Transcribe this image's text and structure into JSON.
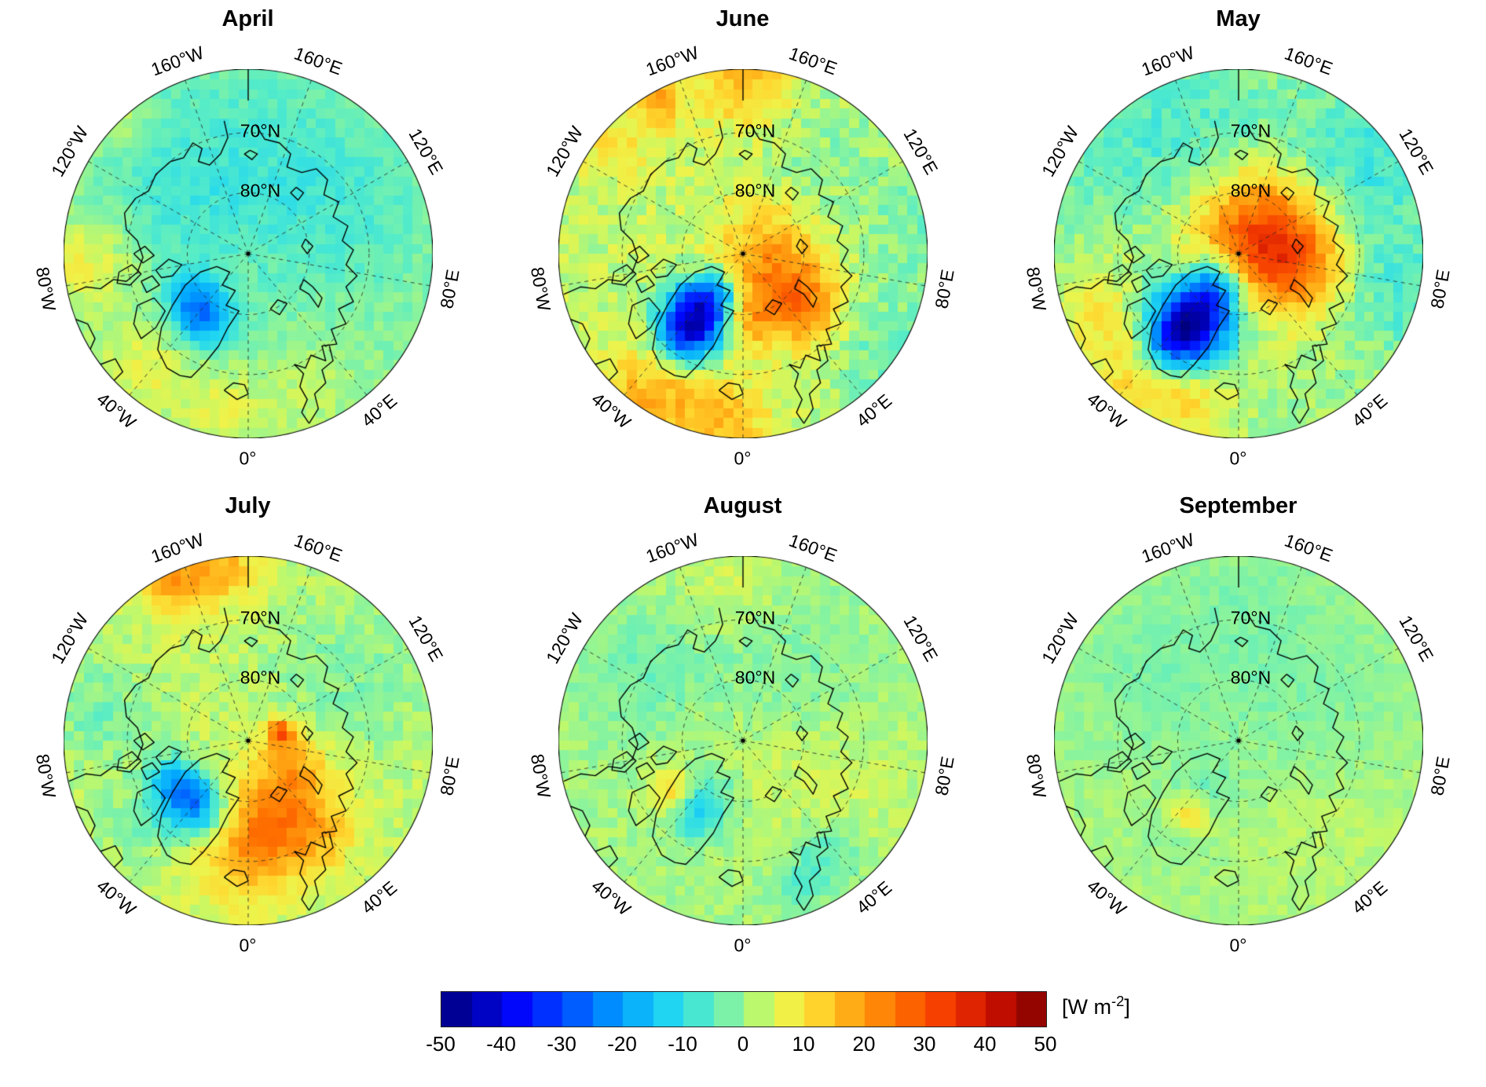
{
  "chart_data": {
    "type": "heatmap",
    "projection": "north-polar-stereographic",
    "variable": "radiative flux anomaly",
    "unit": "W m-2",
    "value_range": [
      -50,
      50
    ],
    "colorbar_ticks": [
      -50,
      -40,
      -30,
      -20,
      -10,
      0,
      10,
      20,
      30,
      40,
      50
    ],
    "panels": [
      {
        "title": "April",
        "base": -1,
        "noise": 2.5,
        "features": [
          {
            "x": -0.24,
            "y": 0.35,
            "s": 0.12,
            "a": -20
          },
          {
            "x": -0.3,
            "y": 0.22,
            "s": 0.1,
            "a": -10
          },
          {
            "x": 0.0,
            "y": -0.45,
            "s": 0.45,
            "a": -5
          },
          {
            "x": -0.45,
            "y": -0.35,
            "s": 0.3,
            "a": -4
          },
          {
            "x": 0.55,
            "y": -0.25,
            "s": 0.35,
            "a": -4
          },
          {
            "x": -0.88,
            "y": 0.05,
            "s": 0.18,
            "a": 9
          },
          {
            "x": -0.55,
            "y": 0.62,
            "s": 0.18,
            "a": 8
          },
          {
            "x": -0.15,
            "y": 0.85,
            "s": 0.15,
            "a": 7
          },
          {
            "x": 0.3,
            "y": 0.75,
            "s": 0.2,
            "a": 4
          },
          {
            "x": -0.75,
            "y": -0.75,
            "s": 0.12,
            "a": 8
          }
        ]
      },
      {
        "title": "June",
        "base": 3,
        "noise": 4,
        "features": [
          {
            "x": -0.26,
            "y": 0.36,
            "s": 0.13,
            "a": -45
          },
          {
            "x": -0.16,
            "y": 0.22,
            "s": 0.09,
            "a": -18
          },
          {
            "x": -0.34,
            "y": 0.5,
            "s": 0.1,
            "a": -12
          },
          {
            "x": 0.18,
            "y": 0.14,
            "s": 0.18,
            "a": 13
          },
          {
            "x": 0.33,
            "y": 0.3,
            "s": 0.15,
            "a": 15
          },
          {
            "x": 0.1,
            "y": -0.06,
            "s": 0.2,
            "a": 8
          },
          {
            "x": 0.02,
            "y": 0.38,
            "s": 0.1,
            "a": 12
          },
          {
            "x": -0.5,
            "y": 0.78,
            "s": 0.2,
            "a": 13
          },
          {
            "x": -0.1,
            "y": 0.92,
            "s": 0.18,
            "a": 11
          },
          {
            "x": 0.02,
            "y": -0.93,
            "s": 0.18,
            "a": 12
          },
          {
            "x": -0.45,
            "y": -0.84,
            "s": 0.1,
            "a": 14
          },
          {
            "x": -0.7,
            "y": -0.6,
            "s": 0.15,
            "a": 6
          },
          {
            "x": 0.8,
            "y": 0.5,
            "s": 0.25,
            "a": -7
          },
          {
            "x": 0.9,
            "y": -0.15,
            "s": 0.2,
            "a": -5
          },
          {
            "x": 0.45,
            "y": -0.55,
            "s": 0.25,
            "a": -4
          }
        ]
      },
      {
        "title": "May",
        "base": 0,
        "noise": 3.5,
        "features": [
          {
            "x": -0.26,
            "y": 0.38,
            "s": 0.16,
            "a": -50
          },
          {
            "x": -0.12,
            "y": 0.18,
            "s": 0.1,
            "a": -22
          },
          {
            "x": -0.38,
            "y": 0.52,
            "s": 0.1,
            "a": -15
          },
          {
            "x": 0.15,
            "y": -0.12,
            "s": 0.22,
            "a": 24
          },
          {
            "x": 0.05,
            "y": -0.02,
            "s": 0.35,
            "a": 8
          },
          {
            "x": 0.33,
            "y": 0.08,
            "s": 0.18,
            "a": 14
          },
          {
            "x": -0.55,
            "y": 0.6,
            "s": 0.22,
            "a": 11
          },
          {
            "x": -0.25,
            "y": 0.8,
            "s": 0.18,
            "a": 8
          },
          {
            "x": -0.8,
            "y": 0.25,
            "s": 0.15,
            "a": 7
          },
          {
            "x": 0.65,
            "y": -0.45,
            "s": 0.3,
            "a": -9
          },
          {
            "x": 0.88,
            "y": 0.2,
            "s": 0.22,
            "a": -7
          },
          {
            "x": -0.55,
            "y": -0.55,
            "s": 0.3,
            "a": -6
          },
          {
            "x": -0.1,
            "y": -0.75,
            "s": 0.25,
            "a": -4
          }
        ]
      },
      {
        "title": "July",
        "base": 3,
        "noise": 3,
        "features": [
          {
            "x": -0.32,
            "y": 0.32,
            "s": 0.12,
            "a": -28
          },
          {
            "x": -0.45,
            "y": 0.2,
            "s": 0.09,
            "a": -10
          },
          {
            "x": -0.2,
            "y": 0.45,
            "s": 0.1,
            "a": -8
          },
          {
            "x": 0.15,
            "y": 0.35,
            "s": 0.2,
            "a": 13
          },
          {
            "x": -0.02,
            "y": 0.6,
            "s": 0.18,
            "a": 14
          },
          {
            "x": 0.35,
            "y": 0.5,
            "s": 0.16,
            "a": 10
          },
          {
            "x": 0.18,
            "y": -0.04,
            "s": 0.05,
            "a": 26
          },
          {
            "x": 0.25,
            "y": 0.12,
            "s": 0.12,
            "a": 10
          },
          {
            "x": -0.4,
            "y": -0.88,
            "s": 0.14,
            "a": 16
          },
          {
            "x": -0.12,
            "y": -0.93,
            "s": 0.12,
            "a": 12
          },
          {
            "x": 0.55,
            "y": -0.35,
            "s": 0.3,
            "a": -5
          },
          {
            "x": -0.8,
            "y": -0.15,
            "s": 0.2,
            "a": -6
          },
          {
            "x": -0.62,
            "y": 0.45,
            "s": 0.15,
            "a": -5
          }
        ]
      },
      {
        "title": "August",
        "base": 1,
        "noise": 2.5,
        "features": [
          {
            "x": -0.25,
            "y": 0.4,
            "s": 0.1,
            "a": -13
          },
          {
            "x": -0.38,
            "y": 0.27,
            "s": 0.08,
            "a": 11
          },
          {
            "x": -0.15,
            "y": 0.28,
            "s": 0.12,
            "a": -6
          },
          {
            "x": 0.2,
            "y": -0.3,
            "s": 0.35,
            "a": -4
          },
          {
            "x": -0.55,
            "y": -0.35,
            "s": 0.25,
            "a": -4
          },
          {
            "x": 0.05,
            "y": 0.1,
            "s": 0.3,
            "a": 4
          },
          {
            "x": 0.45,
            "y": 0.62,
            "s": 0.12,
            "a": -7
          },
          {
            "x": 0.3,
            "y": 0.8,
            "s": 0.1,
            "a": -6
          },
          {
            "x": -0.05,
            "y": -0.85,
            "s": 0.2,
            "a": 4
          },
          {
            "x": 0.6,
            "y": 0.2,
            "s": 0.25,
            "a": 3
          }
        ]
      },
      {
        "title": "September",
        "base": 1,
        "noise": 1.8,
        "features": [
          {
            "x": -0.27,
            "y": 0.4,
            "s": 0.08,
            "a": 13
          },
          {
            "x": -0.2,
            "y": 0.28,
            "s": 0.12,
            "a": -5
          },
          {
            "x": -0.35,
            "y": 0.5,
            "s": 0.1,
            "a": -4
          },
          {
            "x": 0.35,
            "y": -0.3,
            "s": 0.4,
            "a": -3
          },
          {
            "x": -0.5,
            "y": -0.35,
            "s": 0.3,
            "a": -3
          },
          {
            "x": 0.45,
            "y": 0.5,
            "s": 0.3,
            "a": 2
          },
          {
            "x": 0.0,
            "y": -0.8,
            "s": 0.25,
            "a": -2
          }
        ]
      }
    ]
  },
  "graticule": {
    "lon_labels": [
      {
        "text": "0°",
        "lon": 0
      },
      {
        "text": "40°E",
        "lon": 40
      },
      {
        "text": "80°E",
        "lon": 80
      },
      {
        "text": "120°E",
        "lon": 120
      },
      {
        "text": "160°E",
        "lon": 160
      },
      {
        "text": "160°W",
        "lon": -160
      },
      {
        "text": "120°W",
        "lon": -120
      },
      {
        "text": "80°W",
        "lon": -80
      },
      {
        "text": "40°W",
        "lon": -40
      }
    ],
    "lat_labels": [
      {
        "text": "80°N",
        "r": 0.33
      },
      {
        "text": "70°N",
        "r": 0.655
      }
    ],
    "lat_circles": [
      0.33,
      0.655
    ]
  },
  "colorbar": {
    "ticks": [
      "-50",
      "-40",
      "-30",
      "-20",
      "-10",
      "0",
      "10",
      "20",
      "30",
      "40",
      "50"
    ],
    "unit_pre": "[W m",
    "unit_sup": "-2",
    "unit_post": "]",
    "segment_step": 5,
    "stops": [
      {
        "v": -50,
        "c": "#00007f"
      },
      {
        "v": -44,
        "c": "#0000b4"
      },
      {
        "v": -37,
        "c": "#0008ff"
      },
      {
        "v": -28,
        "c": "#0058ff"
      },
      {
        "v": -20,
        "c": "#00a4ff"
      },
      {
        "v": -12,
        "c": "#22d8f0"
      },
      {
        "v": -6,
        "c": "#55ecc8"
      },
      {
        "v": -1,
        "c": "#8cf49b"
      },
      {
        "v": 3,
        "c": "#c2f868"
      },
      {
        "v": 7,
        "c": "#eef34a"
      },
      {
        "v": 12,
        "c": "#ffd62e"
      },
      {
        "v": 18,
        "c": "#ffa814"
      },
      {
        "v": 25,
        "c": "#ff7300"
      },
      {
        "v": 33,
        "c": "#f53d00"
      },
      {
        "v": 41,
        "c": "#cc1100"
      },
      {
        "v": 50,
        "c": "#7f0000"
      }
    ]
  }
}
